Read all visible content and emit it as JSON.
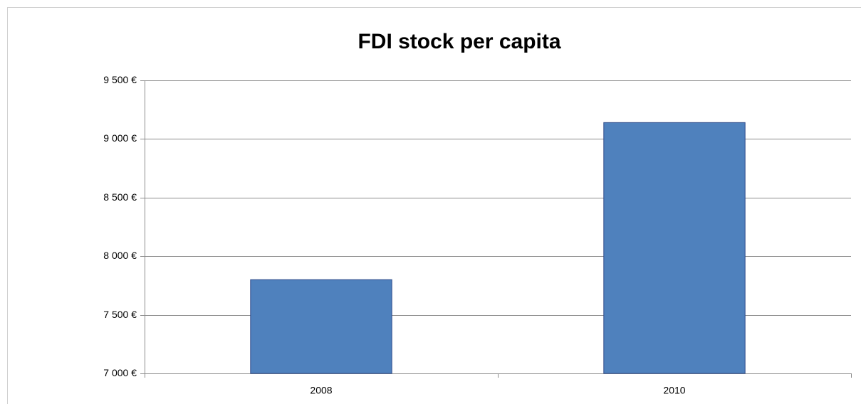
{
  "chart_data": {
    "type": "bar",
    "title": "FDI stock per capita",
    "categories": [
      "2008",
      "2010"
    ],
    "values": [
      7800,
      9140
    ],
    "color": "#4f81bd",
    "ylim": [
      7000,
      9500
    ],
    "yticks": [
      {
        "value": 7000,
        "label": "7 000 €"
      },
      {
        "value": 7500,
        "label": "7 500 €"
      },
      {
        "value": 8000,
        "label": "8 000 €"
      },
      {
        "value": 8500,
        "label": "8 500 €"
      },
      {
        "value": 9000,
        "label": "9 000 €"
      },
      {
        "value": 9500,
        "label": "9 500 €"
      }
    ],
    "grid": true
  }
}
